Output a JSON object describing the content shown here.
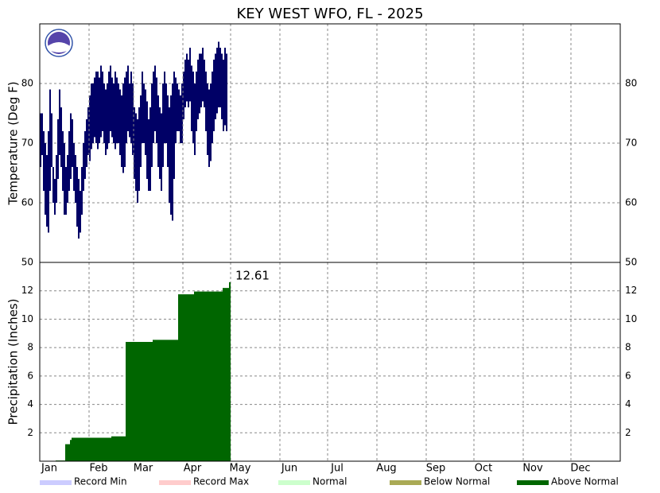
{
  "chart_data": [
    {
      "type": "range_bar",
      "title": "KEY WEST WFO, FL - 2025",
      "y_label": "Temperature (Deg F)",
      "color": "#000066",
      "xlim": [
        0,
        365
      ],
      "ylim": [
        50,
        90
      ],
      "yticks": [
        50,
        60,
        70,
        80
      ],
      "grid": true,
      "x": [
        0,
        1,
        2,
        3,
        4,
        5,
        6,
        7,
        8,
        9,
        10,
        11,
        12,
        13,
        14,
        15,
        16,
        17,
        18,
        19,
        20,
        21,
        22,
        23,
        24,
        25,
        26,
        27,
        28,
        29,
        30,
        31,
        32,
        33,
        34,
        35,
        36,
        37,
        38,
        39,
        40,
        41,
        42,
        43,
        44,
        45,
        46,
        47,
        48,
        49,
        50,
        51,
        52,
        53,
        54,
        55,
        56,
        57,
        58,
        59,
        60,
        61,
        62,
        63,
        64,
        65,
        66,
        67,
        68,
        69,
        70,
        71,
        72,
        73,
        74,
        75,
        76,
        77,
        78,
        79,
        80,
        81,
        82,
        83,
        84,
        85,
        86,
        87,
        88,
        89,
        90,
        91,
        92,
        93,
        94,
        95,
        96,
        97,
        98,
        99,
        100,
        101,
        102,
        103,
        104,
        105,
        106,
        107,
        108,
        109,
        110,
        111,
        112,
        113,
        114,
        115,
        116,
        117
      ],
      "high": [
        75,
        75,
        72,
        70,
        68,
        72,
        79,
        75,
        66,
        64,
        68,
        74,
        79,
        76,
        72,
        70,
        66,
        68,
        72,
        75,
        74,
        70,
        68,
        66,
        64,
        62,
        66,
        70,
        72,
        74,
        76,
        78,
        80,
        80,
        81,
        82,
        82,
        81,
        83,
        82,
        80,
        79,
        80,
        82,
        83,
        81,
        80,
        82,
        81,
        80,
        79,
        78,
        80,
        81,
        82,
        83,
        80,
        82,
        80,
        76,
        75,
        74,
        76,
        78,
        82,
        80,
        79,
        77,
        74,
        76,
        80,
        82,
        83,
        81,
        78,
        76,
        75,
        80,
        82,
        80,
        78,
        76,
        78,
        80,
        82,
        81,
        80,
        79,
        78,
        80,
        82,
        84,
        85,
        84,
        86,
        83,
        82,
        80,
        82,
        84,
        85,
        85,
        86,
        84,
        82,
        80,
        79,
        80,
        82,
        84,
        85,
        86,
        87,
        86,
        85,
        84,
        86,
        85
      ],
      "low": [
        66,
        68,
        62,
        58,
        56,
        55,
        62,
        66,
        60,
        58,
        60,
        64,
        68,
        66,
        62,
        58,
        58,
        60,
        62,
        64,
        66,
        62,
        60,
        56,
        54,
        55,
        58,
        62,
        64,
        66,
        68,
        67,
        69,
        70,
        71,
        70,
        69,
        70,
        71,
        72,
        70,
        68,
        69,
        70,
        72,
        71,
        70,
        69,
        70,
        70,
        68,
        66,
        65,
        66,
        70,
        72,
        71,
        70,
        68,
        64,
        62,
        60,
        62,
        66,
        70,
        70,
        68,
        64,
        62,
        62,
        66,
        70,
        72,
        70,
        66,
        64,
        62,
        66,
        70,
        70,
        66,
        60,
        58,
        57,
        64,
        70,
        72,
        72,
        70,
        70,
        74,
        76,
        77,
        76,
        77,
        72,
        70,
        68,
        72,
        74,
        75,
        76,
        77,
        76,
        72,
        68,
        66,
        67,
        70,
        72,
        74,
        75,
        76,
        76,
        74,
        72,
        73,
        72
      ]
    },
    {
      "type": "step_area",
      "y_label": "Precipitation (Inches)",
      "color": "#006600",
      "xlim": [
        0,
        365
      ],
      "ylim": [
        0,
        14
      ],
      "yticks": [
        2,
        4,
        6,
        8,
        10,
        12
      ],
      "grid": true,
      "xticks": [
        {
          "value": 0,
          "label": "Jan"
        },
        {
          "value": 31,
          "label": "Feb"
        },
        {
          "value": 59,
          "label": "Mar"
        },
        {
          "value": 90,
          "label": "Apr"
        },
        {
          "value": 120,
          "label": "May"
        },
        {
          "value": 151,
          "label": "Jun"
        },
        {
          "value": 181,
          "label": "Jul"
        },
        {
          "value": 212,
          "label": "Aug"
        },
        {
          "value": 243,
          "label": "Sep"
        },
        {
          "value": 273,
          "label": "Oct"
        },
        {
          "value": 304,
          "label": "Nov"
        },
        {
          "value": 334,
          "label": "Dec"
        }
      ],
      "x": [
        10,
        16,
        19,
        20,
        45,
        54,
        71,
        87,
        97,
        115,
        119
      ],
      "values": [
        0.05,
        1.2,
        1.5,
        1.65,
        1.75,
        8.4,
        8.55,
        11.75,
        11.95,
        12.2,
        12.61
      ],
      "legend": [
        {
          "name": "Record Min",
          "color": "#ccccff"
        },
        {
          "name": "Record Max",
          "color": "#ffcccc"
        },
        {
          "name": "Normal",
          "color": "#ccffcc"
        },
        {
          "name": "Below Normal",
          "color": "#aaaa55"
        },
        {
          "name": "Above Normal",
          "color": "#006600"
        }
      ]
    }
  ]
}
